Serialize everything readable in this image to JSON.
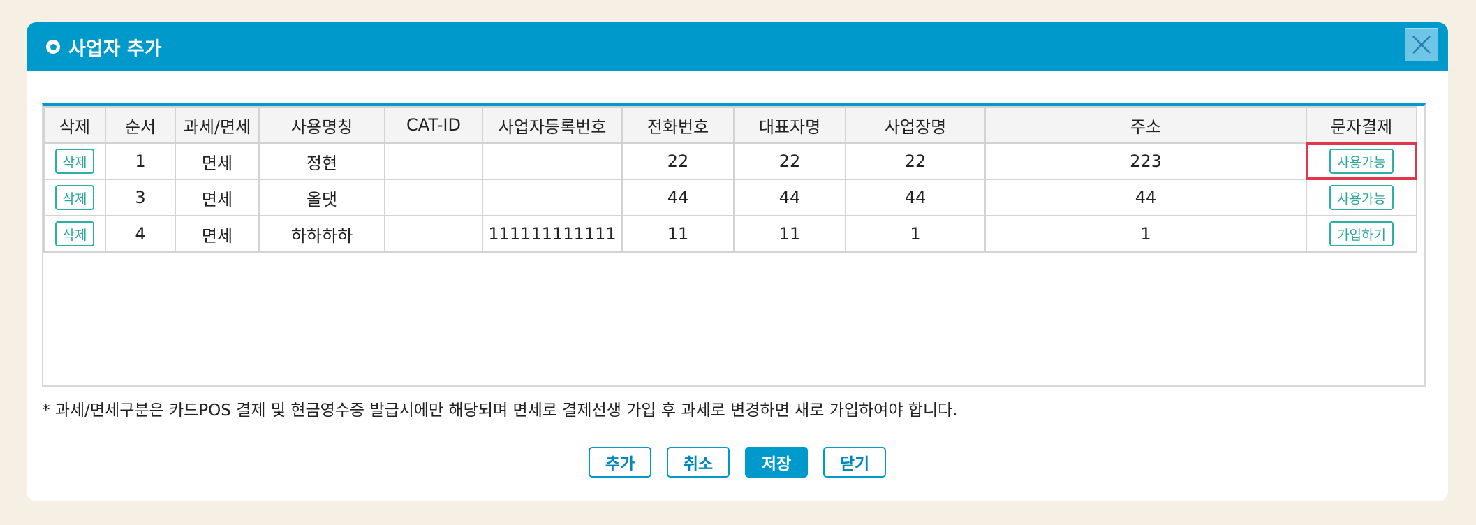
{
  "dialog": {
    "title": "사업자 추가"
  },
  "table": {
    "headers": [
      "삭제",
      "순서",
      "과세/면세",
      "사용명칭",
      "CAT-ID",
      "사업자등록번호",
      "전화번호",
      "대표자명",
      "사업장명",
      "주소",
      "문자결제"
    ],
    "rows": [
      {
        "delete": "삭제",
        "order": "1",
        "tax": "면세",
        "name": "정현",
        "cat_id": "",
        "biz_no": "",
        "phone": "22",
        "ceo": "22",
        "store": "22",
        "address": "223",
        "sms": "사용가능"
      },
      {
        "delete": "삭제",
        "order": "3",
        "tax": "면세",
        "name": "올댓",
        "cat_id": "",
        "biz_no": "",
        "phone": "44",
        "ceo": "44",
        "store": "44",
        "address": "44",
        "sms": "사용가능"
      },
      {
        "delete": "삭제",
        "order": "4",
        "tax": "면세",
        "name": "하하하하",
        "cat_id": "",
        "biz_no": "111111111111",
        "phone": "11",
        "ceo": "11",
        "store": "1",
        "address": "1",
        "sms": "가입하기"
      }
    ]
  },
  "note": "* 과세/면세구분은 카드POS 결제 및 현금영수증 발급시에만 해당되며 면세로 결제선생 가입 후 과세로 변경하면 새로 가입하여야 합니다.",
  "footer": {
    "add": "추가",
    "cancel": "취소",
    "save": "저장",
    "close": "닫기"
  },
  "colors": {
    "accent": "#0099cc",
    "button_teal": "#2bb0a5",
    "highlight": "#e0384a",
    "background": "#f6efe4"
  },
  "icons": {
    "title": "circle-bullet-icon",
    "close": "close-icon"
  }
}
